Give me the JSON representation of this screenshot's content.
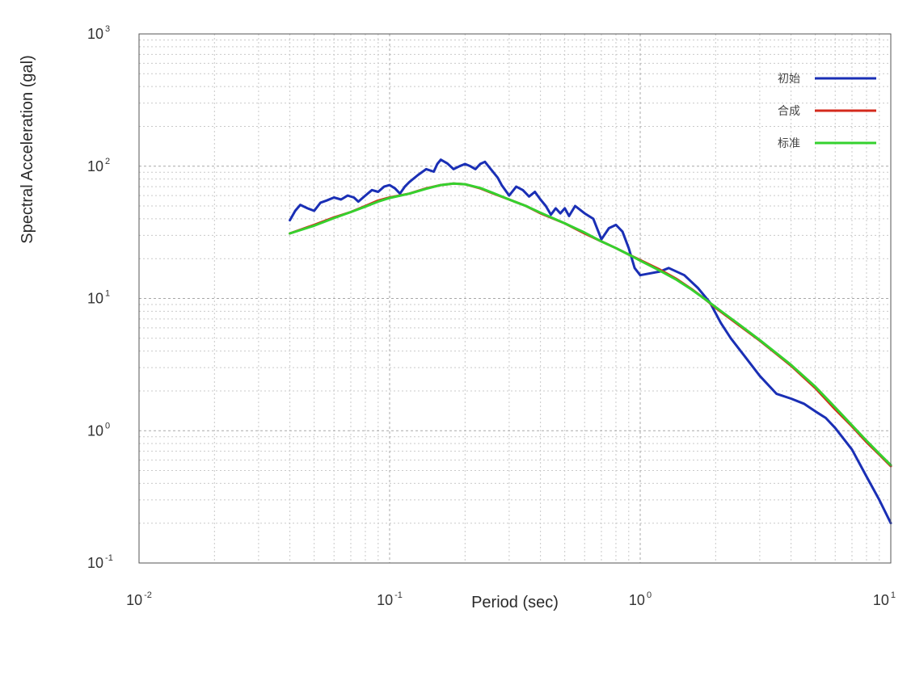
{
  "chart_data": {
    "type": "line",
    "xlabel": "Period (sec)",
    "ylabel": "Spectral Acceleration (gal)",
    "xscale": "log",
    "yscale": "log",
    "xlim": [
      0.01,
      10
    ],
    "ylim": [
      0.1,
      1000
    ],
    "x_ticks": [
      {
        "value": 0.01,
        "base": "10",
        "exp": "-2"
      },
      {
        "value": 0.1,
        "base": "10",
        "exp": "-1"
      },
      {
        "value": 1,
        "base": "10",
        "exp": "0"
      },
      {
        "value": 10,
        "base": "10",
        "exp": "1"
      }
    ],
    "y_ticks": [
      {
        "value": 0.1,
        "base": "10",
        "exp": "-1"
      },
      {
        "value": 1,
        "base": "10",
        "exp": "0"
      },
      {
        "value": 10,
        "base": "10",
        "exp": "1"
      },
      {
        "value": 100,
        "base": "10",
        "exp": "2"
      },
      {
        "value": 1000,
        "base": "10",
        "exp": "3"
      }
    ],
    "grid": true,
    "legend_position": "top-right",
    "series": [
      {
        "name": "初始",
        "color": "#1a2fb5",
        "points": [
          [
            0.04,
            39
          ],
          [
            0.042,
            46
          ],
          [
            0.044,
            51
          ],
          [
            0.047,
            48
          ],
          [
            0.05,
            46
          ],
          [
            0.053,
            53
          ],
          [
            0.056,
            55
          ],
          [
            0.06,
            58
          ],
          [
            0.064,
            56
          ],
          [
            0.068,
            60
          ],
          [
            0.072,
            58
          ],
          [
            0.075,
            54
          ],
          [
            0.08,
            60
          ],
          [
            0.085,
            66
          ],
          [
            0.09,
            64
          ],
          [
            0.095,
            70
          ],
          [
            0.1,
            72
          ],
          [
            0.105,
            68
          ],
          [
            0.11,
            62
          ],
          [
            0.115,
            70
          ],
          [
            0.12,
            76
          ],
          [
            0.13,
            86
          ],
          [
            0.14,
            95
          ],
          [
            0.15,
            91
          ],
          [
            0.155,
            104
          ],
          [
            0.16,
            112
          ],
          [
            0.17,
            105
          ],
          [
            0.18,
            95
          ],
          [
            0.19,
            100
          ],
          [
            0.2,
            104
          ],
          [
            0.21,
            100
          ],
          [
            0.22,
            95
          ],
          [
            0.23,
            104
          ],
          [
            0.24,
            108
          ],
          [
            0.25,
            98
          ],
          [
            0.27,
            82
          ],
          [
            0.28,
            72
          ],
          [
            0.3,
            60
          ],
          [
            0.32,
            70
          ],
          [
            0.34,
            66
          ],
          [
            0.36,
            59
          ],
          [
            0.38,
            64
          ],
          [
            0.4,
            56
          ],
          [
            0.42,
            50
          ],
          [
            0.44,
            43
          ],
          [
            0.46,
            48
          ],
          [
            0.48,
            44
          ],
          [
            0.5,
            48
          ],
          [
            0.52,
            42
          ],
          [
            0.55,
            50
          ],
          [
            0.6,
            44
          ],
          [
            0.65,
            40
          ],
          [
            0.7,
            28
          ],
          [
            0.75,
            34
          ],
          [
            0.8,
            36
          ],
          [
            0.85,
            32
          ],
          [
            0.9,
            24
          ],
          [
            0.95,
            17
          ],
          [
            1.0,
            15
          ],
          [
            1.1,
            15.5
          ],
          [
            1.2,
            16
          ],
          [
            1.3,
            17
          ],
          [
            1.5,
            15
          ],
          [
            1.7,
            12
          ],
          [
            1.9,
            9.3
          ],
          [
            2.1,
            6.5
          ],
          [
            2.3,
            5
          ],
          [
            2.6,
            3.7
          ],
          [
            3.0,
            2.6
          ],
          [
            3.5,
            1.9
          ],
          [
            4.0,
            1.75
          ],
          [
            4.5,
            1.6
          ],
          [
            5.0,
            1.4
          ],
          [
            5.5,
            1.25
          ],
          [
            6.0,
            1.05
          ],
          [
            7.0,
            0.72
          ],
          [
            8.0,
            0.45
          ],
          [
            9.0,
            0.3
          ],
          [
            10.0,
            0.2
          ]
        ]
      },
      {
        "name": "合成",
        "color": "#d42a1c",
        "points": [
          [
            0.04,
            31
          ],
          [
            0.05,
            36
          ],
          [
            0.06,
            41
          ],
          [
            0.07,
            45
          ],
          [
            0.08,
            50
          ],
          [
            0.09,
            55
          ],
          [
            0.1,
            58
          ],
          [
            0.12,
            62
          ],
          [
            0.14,
            68
          ],
          [
            0.16,
            72
          ],
          [
            0.18,
            74
          ],
          [
            0.2,
            73
          ],
          [
            0.23,
            68
          ],
          [
            0.26,
            62
          ],
          [
            0.3,
            56
          ],
          [
            0.35,
            50
          ],
          [
            0.4,
            44
          ],
          [
            0.5,
            37
          ],
          [
            0.6,
            31
          ],
          [
            0.7,
            27
          ],
          [
            0.8,
            24
          ],
          [
            0.9,
            21.5
          ],
          [
            1.0,
            19.5
          ],
          [
            1.2,
            16.5
          ],
          [
            1.4,
            14
          ],
          [
            1.6,
            11.8
          ],
          [
            1.8,
            10
          ],
          [
            2.0,
            8.5
          ],
          [
            2.5,
            6.2
          ],
          [
            3.0,
            4.8
          ],
          [
            3.5,
            3.8
          ],
          [
            4.0,
            3.1
          ],
          [
            5.0,
            2.1
          ],
          [
            6.0,
            1.45
          ],
          [
            7.0,
            1.08
          ],
          [
            8.0,
            0.82
          ],
          [
            9.0,
            0.66
          ],
          [
            10.0,
            0.54
          ]
        ]
      },
      {
        "name": "标准",
        "color": "#35d12e",
        "points": [
          [
            0.04,
            31
          ],
          [
            0.05,
            35.5
          ],
          [
            0.06,
            40.5
          ],
          [
            0.07,
            45
          ],
          [
            0.08,
            49.5
          ],
          [
            0.09,
            54
          ],
          [
            0.1,
            57.5
          ],
          [
            0.12,
            62
          ],
          [
            0.14,
            67.5
          ],
          [
            0.16,
            72
          ],
          [
            0.18,
            74
          ],
          [
            0.2,
            73
          ],
          [
            0.23,
            68.5
          ],
          [
            0.26,
            62.5
          ],
          [
            0.3,
            56
          ],
          [
            0.35,
            50
          ],
          [
            0.4,
            44.5
          ],
          [
            0.5,
            37
          ],
          [
            0.6,
            31.5
          ],
          [
            0.7,
            27
          ],
          [
            0.8,
            24
          ],
          [
            0.9,
            21.5
          ],
          [
            1.0,
            19.3
          ],
          [
            1.2,
            16.2
          ],
          [
            1.4,
            13.8
          ],
          [
            1.6,
            11.7
          ],
          [
            1.8,
            10
          ],
          [
            2.0,
            8.6
          ],
          [
            2.5,
            6.3
          ],
          [
            3.0,
            4.85
          ],
          [
            3.5,
            3.85
          ],
          [
            4.0,
            3.15
          ],
          [
            5.0,
            2.15
          ],
          [
            6.0,
            1.5
          ],
          [
            7.0,
            1.1
          ],
          [
            8.0,
            0.84
          ],
          [
            9.0,
            0.67
          ],
          [
            10.0,
            0.55
          ]
        ]
      }
    ]
  }
}
